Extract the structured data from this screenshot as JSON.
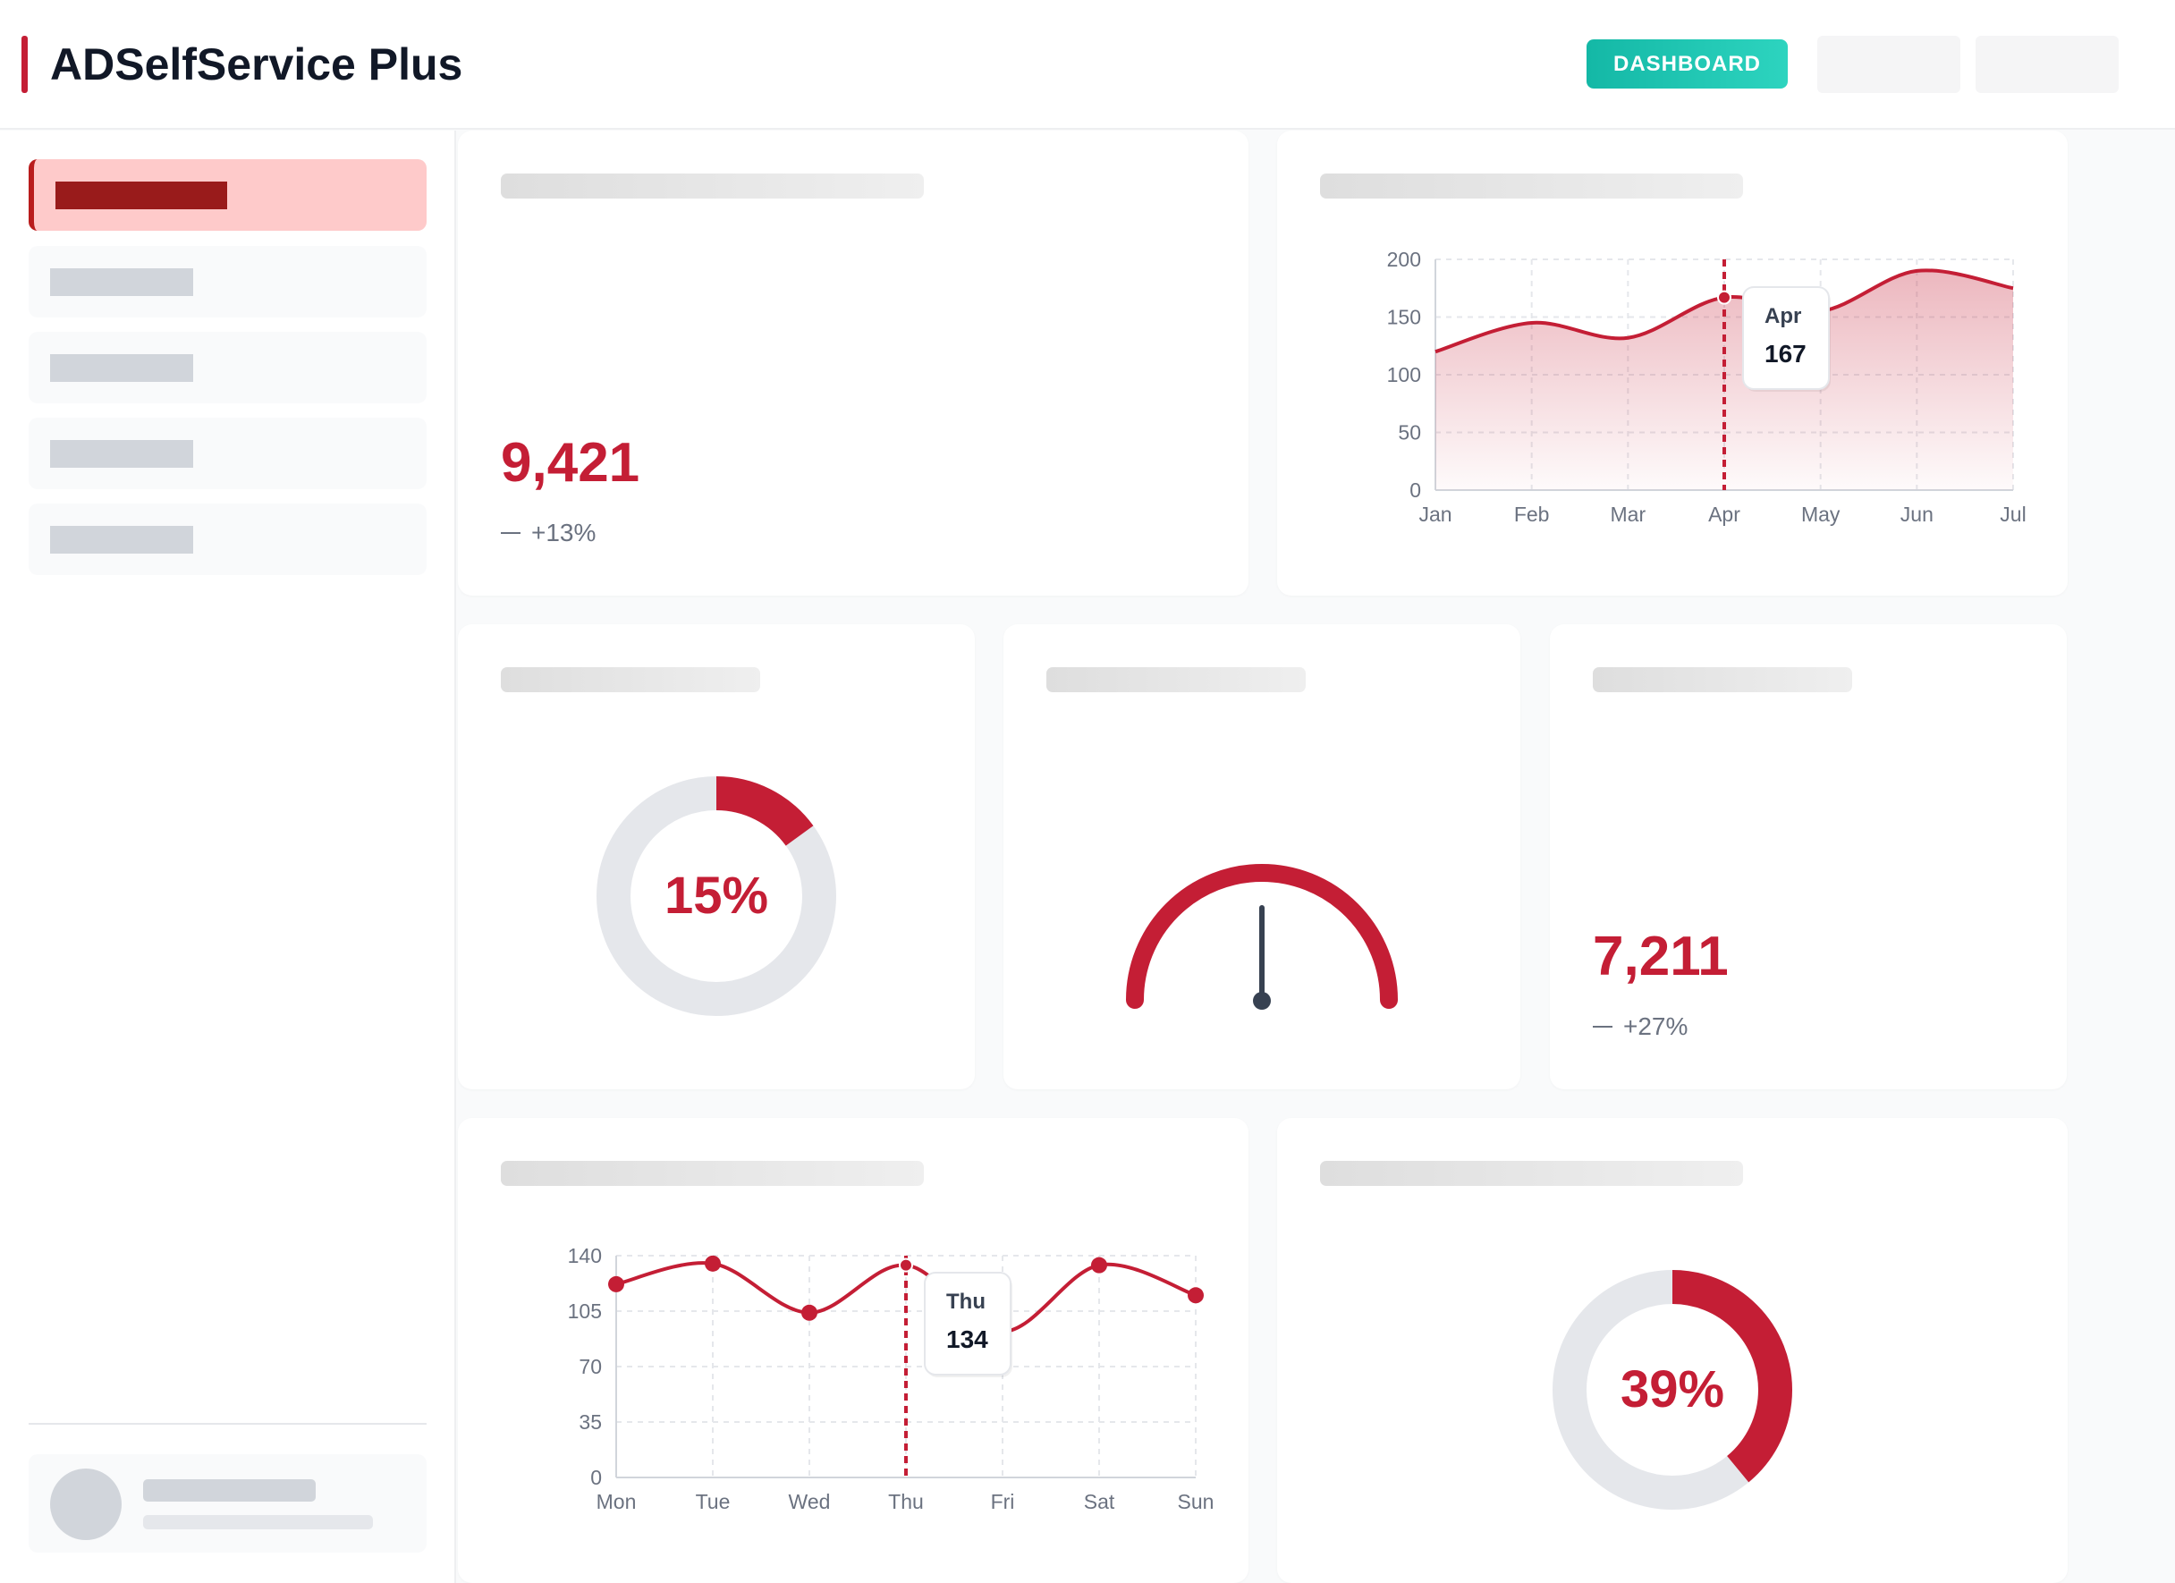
{
  "header": {
    "title": "ADSelfService Plus",
    "dashboard_label": "DASHBOARD"
  },
  "colors": {
    "accent": "#c41e35",
    "teal": "#14b8a6",
    "track": "#e5e7eb"
  },
  "metric1": {
    "value": "9,421",
    "trend": "+13%"
  },
  "metric2": {
    "value": "7,211",
    "trend": "+27%"
  },
  "donut1": {
    "label": "15%",
    "percent": 15
  },
  "donut2": {
    "label": "39%",
    "percent": 39
  },
  "gauge": {
    "percent": 50
  },
  "chart_data": [
    {
      "type": "area",
      "categories": [
        "Jan",
        "Feb",
        "Mar",
        "Apr",
        "May",
        "Jun",
        "Jul"
      ],
      "values": [
        120,
        145,
        132,
        167,
        155,
        190,
        175
      ],
      "ylim": [
        0,
        200
      ],
      "yticks": [
        "0",
        "50",
        "100",
        "150",
        "200"
      ],
      "tooltip": {
        "label": "Apr",
        "value": "167"
      }
    },
    {
      "type": "line",
      "categories": [
        "Mon",
        "Tue",
        "Wed",
        "Thu",
        "Fri",
        "Sat",
        "Sun"
      ],
      "values": [
        122,
        135,
        104,
        134,
        92,
        134,
        115
      ],
      "ylim": [
        0,
        140
      ],
      "yticks": [
        "0",
        "35",
        "70",
        "105",
        "140"
      ],
      "tooltip": {
        "label": "Thu",
        "value": "134"
      }
    }
  ]
}
